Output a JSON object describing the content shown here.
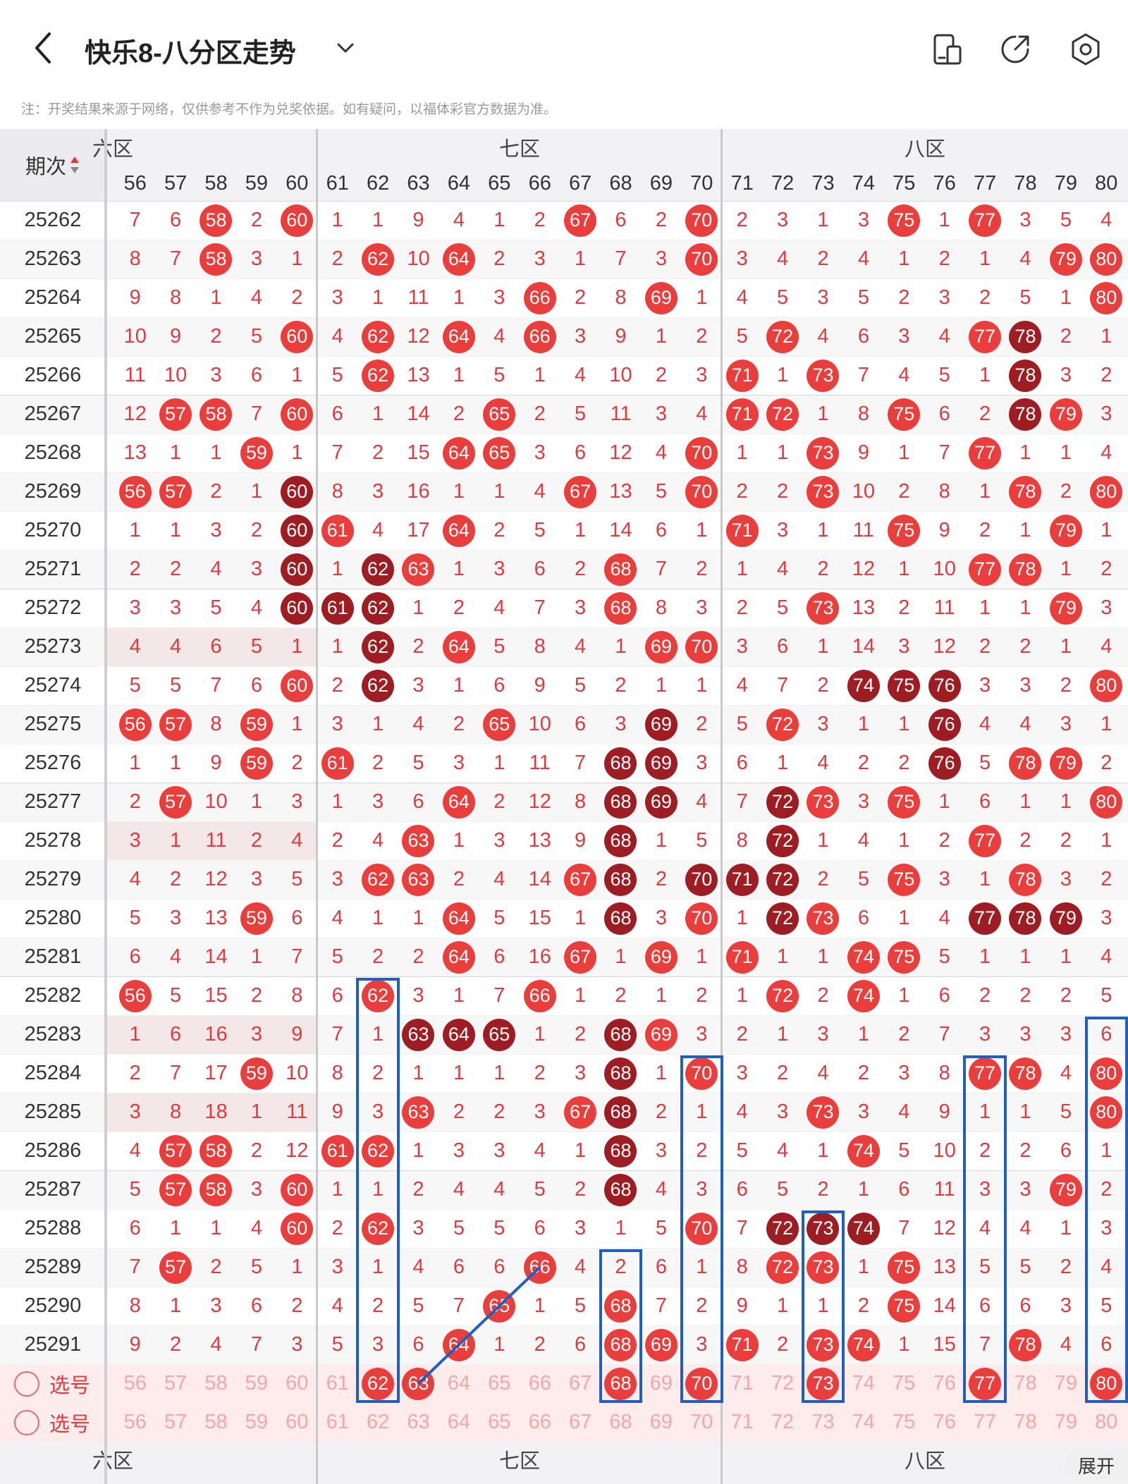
{
  "header": {
    "title": "快乐8-八分区走势",
    "icons": [
      "back-icon",
      "chevron-down-icon",
      "device-icon",
      "share-icon",
      "settings-icon"
    ]
  },
  "note": "注：开奖结果来源于网络，仅供参考不作为兑奖依据。如有疑问，以福体彩官方数据为准。",
  "table": {
    "period_header": "期次",
    "zones": [
      "六区",
      "七区",
      "八区"
    ],
    "columns": [
      56,
      57,
      58,
      59,
      60,
      61,
      62,
      63,
      64,
      65,
      66,
      67,
      68,
      69,
      70,
      71,
      72,
      73,
      74,
      75,
      76,
      77,
      78,
      79,
      80
    ],
    "rows": [
      {
        "issue": "25262",
        "cells": [
          "7",
          "6",
          "R58",
          "2",
          "R60",
          "1",
          "1",
          "9",
          "4",
          "1",
          "2",
          "R67",
          "6",
          "2",
          "R70",
          "2",
          "3",
          "1",
          "3",
          "R75",
          "1",
          "R77",
          "3",
          "5",
          "4"
        ]
      },
      {
        "issue": "25263",
        "cells": [
          "8",
          "7",
          "R58",
          "3",
          "1",
          "2",
          "R62",
          "10",
          "R64",
          "2",
          "3",
          "1",
          "7",
          "3",
          "R70",
          "3",
          "4",
          "2",
          "4",
          "1",
          "2",
          "1",
          "4",
          "R79",
          "R80"
        ]
      },
      {
        "issue": "25264",
        "cells": [
          "9",
          "8",
          "1",
          "4",
          "2",
          "3",
          "1",
          "11",
          "1",
          "3",
          "R66",
          "2",
          "8",
          "R69",
          "1",
          "4",
          "5",
          "3",
          "5",
          "2",
          "3",
          "2",
          "5",
          "1",
          "R80"
        ]
      },
      {
        "issue": "25265",
        "cells": [
          "10",
          "9",
          "2",
          "5",
          "R60",
          "4",
          "R62",
          "12",
          "R64",
          "4",
          "R66",
          "3",
          "9",
          "1",
          "2",
          "5",
          "R72",
          "4",
          "6",
          "3",
          "4",
          "R77",
          "D78",
          "2",
          "1"
        ]
      },
      {
        "issue": "25266",
        "cells": [
          "11",
          "10",
          "3",
          "6",
          "1",
          "5",
          "R62",
          "13",
          "1",
          "5",
          "1",
          "4",
          "10",
          "2",
          "3",
          "R71",
          "1",
          "R73",
          "7",
          "4",
          "5",
          "1",
          "D78",
          "3",
          "2"
        ]
      },
      {
        "issue": "25267",
        "cells": [
          "12",
          "R57",
          "R58",
          "7",
          "R60",
          "6",
          "1",
          "14",
          "2",
          "R65",
          "2",
          "5",
          "11",
          "3",
          "4",
          "R71",
          "R72",
          "1",
          "8",
          "R75",
          "6",
          "2",
          "D78",
          "R79",
          "3"
        ]
      },
      {
        "issue": "25268",
        "cells": [
          "13",
          "1",
          "1",
          "R59",
          "1",
          "7",
          "2",
          "15",
          "R64",
          "R65",
          "3",
          "6",
          "12",
          "4",
          "R70",
          "1",
          "1",
          "R73",
          "9",
          "1",
          "7",
          "R77",
          "1",
          "1",
          "4"
        ]
      },
      {
        "issue": "25269",
        "cells": [
          "R56",
          "R57",
          "2",
          "1",
          "D60",
          "8",
          "3",
          "16",
          "1",
          "1",
          "4",
          "R67",
          "13",
          "5",
          "R70",
          "2",
          "2",
          "R73",
          "10",
          "2",
          "8",
          "1",
          "R78",
          "2",
          "R80"
        ]
      },
      {
        "issue": "25270",
        "cells": [
          "1",
          "1",
          "3",
          "2",
          "D60",
          "R61",
          "4",
          "17",
          "R64",
          "2",
          "5",
          "1",
          "14",
          "6",
          "1",
          "R71",
          "3",
          "1",
          "11",
          "R75",
          "9",
          "2",
          "1",
          "R79",
          "1"
        ]
      },
      {
        "issue": "25271",
        "cells": [
          "2",
          "2",
          "4",
          "3",
          "D60",
          "1",
          "D62",
          "R63",
          "1",
          "3",
          "6",
          "2",
          "R68",
          "7",
          "2",
          "1",
          "4",
          "2",
          "12",
          "1",
          "10",
          "R77",
          "R78",
          "1",
          "2"
        ]
      },
      {
        "issue": "25272",
        "cells": [
          "3",
          "3",
          "5",
          "4",
          "D60",
          "D61",
          "D62",
          "1",
          "2",
          "4",
          "7",
          "3",
          "R68",
          "8",
          "3",
          "2",
          "5",
          "R73",
          "13",
          "2",
          "11",
          "1",
          "1",
          "R79",
          "3"
        ]
      },
      {
        "issue": "25273",
        "cells": [
          "4",
          "4",
          "6",
          "5",
          "1",
          "1",
          "D62",
          "2",
          "R64",
          "5",
          "8",
          "4",
          "1",
          "R69",
          "R70",
          "3",
          "6",
          "1",
          "14",
          "3",
          "12",
          "2",
          "2",
          "1",
          "4"
        ]
      },
      {
        "issue": "25274",
        "cells": [
          "5",
          "5",
          "7",
          "6",
          "R60",
          "2",
          "D62",
          "3",
          "1",
          "6",
          "9",
          "5",
          "2",
          "1",
          "1",
          "4",
          "7",
          "2",
          "D74",
          "D75",
          "D76",
          "3",
          "3",
          "2",
          "R80"
        ]
      },
      {
        "issue": "25275",
        "cells": [
          "R56",
          "R57",
          "8",
          "R59",
          "1",
          "3",
          "1",
          "4",
          "2",
          "R65",
          "10",
          "6",
          "3",
          "D69",
          "2",
          "5",
          "R72",
          "3",
          "1",
          "1",
          "D76",
          "4",
          "4",
          "3",
          "1"
        ]
      },
      {
        "issue": "25276",
        "cells": [
          "1",
          "1",
          "9",
          "R59",
          "2",
          "R61",
          "2",
          "5",
          "3",
          "1",
          "11",
          "7",
          "D68",
          "D69",
          "3",
          "6",
          "1",
          "4",
          "2",
          "2",
          "D76",
          "5",
          "R78",
          "R79",
          "2"
        ]
      },
      {
        "issue": "25277",
        "cells": [
          "2",
          "R57",
          "10",
          "1",
          "3",
          "1",
          "3",
          "6",
          "R64",
          "2",
          "12",
          "8",
          "D68",
          "D69",
          "4",
          "7",
          "D72",
          "R73",
          "3",
          "R75",
          "1",
          "6",
          "1",
          "1",
          "R80"
        ]
      },
      {
        "issue": "25278",
        "cells": [
          "3",
          "1",
          "11",
          "2",
          "4",
          "2",
          "4",
          "R63",
          "1",
          "3",
          "13",
          "9",
          "D68",
          "1",
          "5",
          "8",
          "D72",
          "1",
          "4",
          "1",
          "2",
          "R77",
          "2",
          "2",
          "1"
        ]
      },
      {
        "issue": "25279",
        "cells": [
          "4",
          "2",
          "12",
          "3",
          "5",
          "3",
          "R62",
          "R63",
          "2",
          "4",
          "14",
          "R67",
          "D68",
          "2",
          "D70",
          "D71",
          "D72",
          "2",
          "5",
          "R75",
          "3",
          "1",
          "R78",
          "3",
          "2"
        ]
      },
      {
        "issue": "25280",
        "cells": [
          "5",
          "3",
          "13",
          "R59",
          "6",
          "4",
          "1",
          "1",
          "R64",
          "5",
          "15",
          "1",
          "D68",
          "3",
          "R70",
          "1",
          "D72",
          "R73",
          "6",
          "1",
          "4",
          "D77",
          "D78",
          "D79",
          "3"
        ]
      },
      {
        "issue": "25281",
        "cells": [
          "6",
          "4",
          "14",
          "1",
          "7",
          "5",
          "2",
          "2",
          "R64",
          "6",
          "16",
          "R67",
          "1",
          "R69",
          "1",
          "R71",
          "1",
          "1",
          "R74",
          "R75",
          "5",
          "1",
          "1",
          "1",
          "4"
        ]
      },
      {
        "issue": "25282",
        "cells": [
          "R56",
          "5",
          "15",
          "2",
          "8",
          "6",
          "R62",
          "3",
          "1",
          "7",
          "R66",
          "1",
          "2",
          "1",
          "2",
          "1",
          "R72",
          "2",
          "R74",
          "1",
          "6",
          "2",
          "2",
          "2",
          "5"
        ]
      },
      {
        "issue": "25283",
        "cells": [
          "1",
          "6",
          "16",
          "3",
          "9",
          "7",
          "1",
          "D63",
          "D64",
          "D65",
          "1",
          "2",
          "D68",
          "R69",
          "3",
          "2",
          "1",
          "3",
          "1",
          "2",
          "7",
          "3",
          "3",
          "3",
          "6"
        ]
      },
      {
        "issue": "25284",
        "cells": [
          "2",
          "7",
          "17",
          "R59",
          "10",
          "8",
          "2",
          "1",
          "1",
          "1",
          "2",
          "3",
          "D68",
          "1",
          "R70",
          "3",
          "2",
          "4",
          "2",
          "3",
          "8",
          "R77",
          "R78",
          "4",
          "R80"
        ]
      },
      {
        "issue": "25285",
        "cells": [
          "3",
          "8",
          "18",
          "1",
          "11",
          "9",
          "3",
          "R63",
          "2",
          "2",
          "3",
          "R67",
          "D68",
          "2",
          "1",
          "4",
          "3",
          "R73",
          "3",
          "4",
          "9",
          "1",
          "1",
          "5",
          "R80"
        ]
      },
      {
        "issue": "25286",
        "cells": [
          "4",
          "R57",
          "R58",
          "2",
          "12",
          "R61",
          "R62",
          "1",
          "3",
          "3",
          "4",
          "1",
          "D68",
          "3",
          "2",
          "5",
          "4",
          "1",
          "R74",
          "5",
          "10",
          "2",
          "2",
          "6",
          "1"
        ]
      },
      {
        "issue": "25287",
        "cells": [
          "5",
          "R57",
          "R58",
          "3",
          "R60",
          "1",
          "1",
          "2",
          "4",
          "4",
          "5",
          "2",
          "D68",
          "4",
          "3",
          "6",
          "5",
          "2",
          "1",
          "6",
          "11",
          "3",
          "3",
          "R79",
          "2"
        ]
      },
      {
        "issue": "25288",
        "cells": [
          "6",
          "1",
          "1",
          "4",
          "R60",
          "2",
          "R62",
          "3",
          "5",
          "5",
          "6",
          "3",
          "1",
          "5",
          "R70",
          "7",
          "D72",
          "D73",
          "D74",
          "7",
          "12",
          "4",
          "4",
          "1",
          "3"
        ]
      },
      {
        "issue": "25289",
        "cells": [
          "7",
          "R57",
          "2",
          "5",
          "1",
          "3",
          "1",
          "4",
          "6",
          "6",
          "R66",
          "4",
          "2",
          "6",
          "1",
          "8",
          "R72",
          "R73",
          "1",
          "R75",
          "13",
          "5",
          "5",
          "2",
          "4"
        ]
      },
      {
        "issue": "25290",
        "cells": [
          "8",
          "1",
          "3",
          "6",
          "2",
          "4",
          "2",
          "5",
          "7",
          "R65",
          "1",
          "5",
          "R68",
          "7",
          "2",
          "9",
          "1",
          "1",
          "2",
          "R75",
          "14",
          "6",
          "6",
          "3",
          "5"
        ]
      },
      {
        "issue": "25291",
        "cells": [
          "9",
          "2",
          "4",
          "7",
          "3",
          "5",
          "3",
          "6",
          "R64",
          "1",
          "2",
          "6",
          "R68",
          "R69",
          "3",
          "R71",
          "2",
          "R73",
          "R74",
          "1",
          "15",
          "7",
          "R78",
          "4",
          "6"
        ]
      }
    ],
    "pick_rows": [
      {
        "label": "选号",
        "cells": [
          "56",
          "57",
          "58",
          "59",
          "60",
          "61",
          "P62",
          "P63",
          "64",
          "65",
          "66",
          "67",
          "P68",
          "69",
          "P70",
          "71",
          "72",
          "P73",
          "74",
          "75",
          "76",
          "P77",
          "78",
          "79",
          "P80"
        ]
      },
      {
        "label": "选号",
        "cells": [
          "56",
          "57",
          "58",
          "59",
          "60",
          "61",
          "62",
          "63",
          "64",
          "65",
          "66",
          "67",
          "68",
          "69",
          "70",
          "71",
          "72",
          "73",
          "74",
          "75",
          "76",
          "77",
          "78",
          "79",
          "80"
        ]
      }
    ],
    "footer_zones": [
      "六区",
      "七区",
      "八区"
    ],
    "expand_label": "展开"
  },
  "colors": {
    "red": "#ea3e3c",
    "dark": "#9e1d22",
    "line": "#1e5fbf"
  }
}
